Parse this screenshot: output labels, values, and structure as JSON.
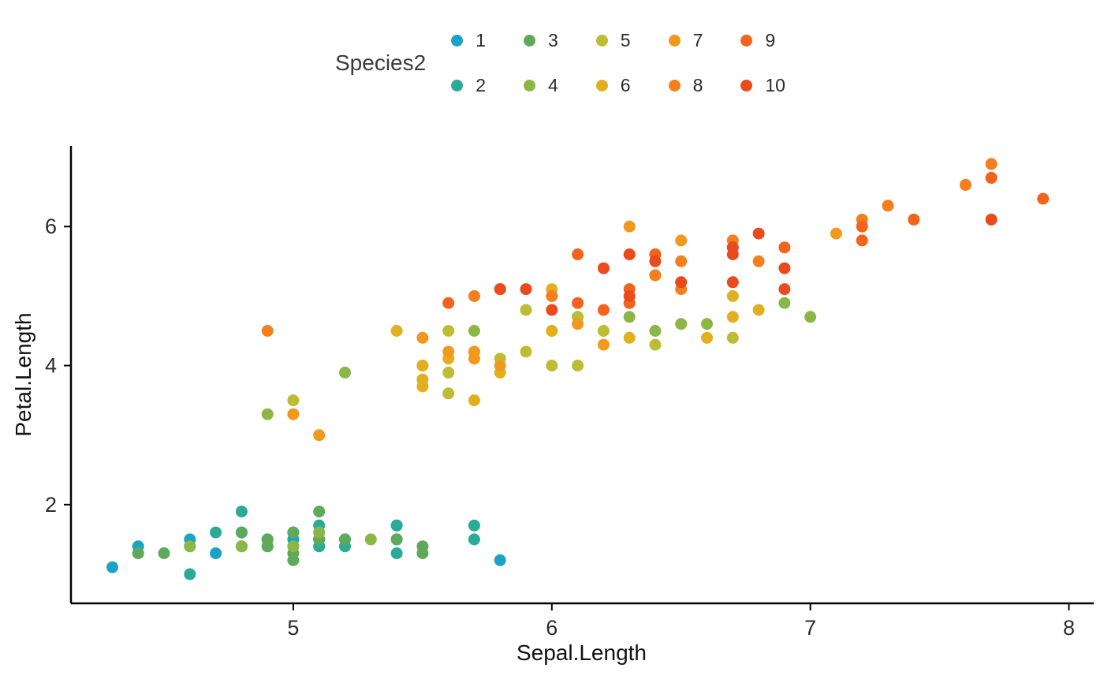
{
  "legend": {
    "title": "Species2"
  },
  "axes": {
    "x_label": "Sepal.Length",
    "y_label": "Petal.Length",
    "axis_color": "#000000",
    "tick_text_color": "#2b2b2b"
  },
  "chart_data": {
    "type": "scatter",
    "title": "",
    "xlabel": "Sepal.Length",
    "ylabel": "Petal.Length",
    "legend_title": "Species2",
    "legend_position": "top",
    "grid": false,
    "xlim": [
      4.14,
      8.09
    ],
    "ylim": [
      0.58,
      7.16
    ],
    "x_ticks": [
      5,
      6,
      7,
      8
    ],
    "y_ticks": [
      2,
      4,
      6
    ],
    "point_radius": 7.5,
    "series": [
      {
        "name": "1",
        "color": "#1BA3C6",
        "points": [
          [
            5.1,
            1.4
          ],
          [
            4.9,
            1.4
          ],
          [
            4.7,
            1.3
          ],
          [
            4.6,
            1.5
          ],
          [
            5.0,
            1.4
          ],
          [
            5.4,
            1.7
          ],
          [
            4.6,
            1.4
          ],
          [
            5.0,
            1.5
          ],
          [
            4.4,
            1.4
          ],
          [
            4.9,
            1.5
          ],
          [
            5.4,
            1.5
          ],
          [
            4.8,
            1.6
          ],
          [
            4.8,
            1.4
          ],
          [
            4.3,
            1.1
          ],
          [
            5.8,
            1.2
          ]
        ]
      },
      {
        "name": "2",
        "color": "#2AAB95",
        "points": [
          [
            5.7,
            1.5
          ],
          [
            5.4,
            1.3
          ],
          [
            5.1,
            1.4
          ],
          [
            5.7,
            1.7
          ],
          [
            5.1,
            1.5
          ],
          [
            5.4,
            1.7
          ],
          [
            5.1,
            1.5
          ],
          [
            4.6,
            1.0
          ],
          [
            5.1,
            1.7
          ],
          [
            4.8,
            1.9
          ],
          [
            5.0,
            1.6
          ],
          [
            5.0,
            1.6
          ],
          [
            5.2,
            1.5
          ],
          [
            5.2,
            1.4
          ],
          [
            4.7,
            1.6
          ]
        ]
      },
      {
        "name": "3",
        "color": "#5FA95C",
        "points": [
          [
            4.8,
            1.6
          ],
          [
            5.4,
            1.5
          ],
          [
            5.2,
            1.5
          ],
          [
            5.5,
            1.4
          ],
          [
            4.9,
            1.5
          ],
          [
            5.0,
            1.2
          ],
          [
            5.5,
            1.3
          ],
          [
            4.9,
            1.4
          ],
          [
            4.4,
            1.3
          ],
          [
            5.1,
            1.5
          ],
          [
            5.0,
            1.3
          ],
          [
            4.5,
            1.3
          ],
          [
            4.4,
            1.3
          ],
          [
            5.0,
            1.6
          ],
          [
            5.1,
            1.9
          ]
        ]
      },
      {
        "name": "4",
        "color": "#8CB645",
        "points": [
          [
            4.8,
            1.4
          ],
          [
            5.1,
            1.6
          ],
          [
            4.6,
            1.4
          ],
          [
            5.3,
            1.5
          ],
          [
            5.0,
            1.4
          ],
          [
            7.0,
            4.7
          ],
          [
            6.4,
            4.5
          ],
          [
            6.9,
            4.9
          ],
          [
            5.5,
            4.0
          ],
          [
            6.5,
            4.6
          ],
          [
            5.7,
            4.5
          ],
          [
            6.3,
            4.7
          ],
          [
            4.9,
            3.3
          ],
          [
            6.6,
            4.6
          ],
          [
            5.2,
            3.9
          ]
        ]
      },
      {
        "name": "5",
        "color": "#BCBC35",
        "points": [
          [
            5.0,
            3.5
          ],
          [
            5.9,
            4.2
          ],
          [
            6.0,
            4.0
          ],
          [
            6.1,
            4.7
          ],
          [
            5.6,
            3.6
          ],
          [
            6.7,
            4.4
          ],
          [
            5.6,
            4.5
          ],
          [
            5.8,
            4.1
          ],
          [
            6.2,
            4.5
          ],
          [
            5.6,
            3.9
          ],
          [
            5.9,
            4.8
          ],
          [
            6.1,
            4.0
          ],
          [
            6.3,
            4.9
          ],
          [
            6.1,
            4.7
          ],
          [
            6.4,
            4.3
          ]
        ]
      },
      {
        "name": "6",
        "color": "#E2B01E",
        "points": [
          [
            6.6,
            4.4
          ],
          [
            6.8,
            4.8
          ],
          [
            6.7,
            5.0
          ],
          [
            6.0,
            4.5
          ],
          [
            5.7,
            3.5
          ],
          [
            5.5,
            3.8
          ],
          [
            5.5,
            3.7
          ],
          [
            5.8,
            3.9
          ],
          [
            6.0,
            5.1
          ],
          [
            5.4,
            4.5
          ],
          [
            6.0,
            4.5
          ],
          [
            6.7,
            4.7
          ],
          [
            6.3,
            4.4
          ],
          [
            5.6,
            4.1
          ],
          [
            5.5,
            4.0
          ]
        ]
      },
      {
        "name": "7",
        "color": "#F1991F",
        "points": [
          [
            5.5,
            4.4
          ],
          [
            6.1,
            4.6
          ],
          [
            5.8,
            4.0
          ],
          [
            5.0,
            3.3
          ],
          [
            5.6,
            4.2
          ],
          [
            5.7,
            4.2
          ],
          [
            5.7,
            4.2
          ],
          [
            6.2,
            4.3
          ],
          [
            5.1,
            3.0
          ],
          [
            5.7,
            4.1
          ],
          [
            6.3,
            6.0
          ],
          [
            5.8,
            5.1
          ],
          [
            7.1,
            5.9
          ],
          [
            6.3,
            5.6
          ],
          [
            6.5,
            5.8
          ]
        ]
      },
      {
        "name": "8",
        "color": "#F57F1E",
        "points": [
          [
            7.6,
            6.6
          ],
          [
            4.9,
            4.5
          ],
          [
            7.3,
            6.3
          ],
          [
            6.7,
            5.8
          ],
          [
            7.2,
            6.1
          ],
          [
            6.5,
            5.1
          ],
          [
            6.4,
            5.3
          ],
          [
            6.8,
            5.5
          ],
          [
            5.7,
            5.0
          ],
          [
            5.8,
            5.1
          ],
          [
            6.4,
            5.3
          ],
          [
            6.5,
            5.5
          ],
          [
            7.7,
            6.7
          ],
          [
            7.7,
            6.9
          ],
          [
            6.0,
            5.0
          ]
        ]
      },
      {
        "name": "9",
        "color": "#F2631C",
        "points": [
          [
            6.9,
            5.7
          ],
          [
            5.6,
            4.9
          ],
          [
            7.7,
            6.7
          ],
          [
            6.3,
            4.9
          ],
          [
            6.7,
            5.7
          ],
          [
            7.2,
            6.0
          ],
          [
            6.2,
            4.8
          ],
          [
            6.1,
            4.9
          ],
          [
            6.4,
            5.6
          ],
          [
            7.2,
            5.8
          ],
          [
            7.4,
            6.1
          ],
          [
            7.9,
            6.4
          ],
          [
            6.4,
            5.6
          ],
          [
            6.3,
            5.1
          ],
          [
            6.1,
            5.6
          ]
        ]
      },
      {
        "name": "10",
        "color": "#EB4A1C",
        "points": [
          [
            7.7,
            6.1
          ],
          [
            6.3,
            5.6
          ],
          [
            6.4,
            5.5
          ],
          [
            6.0,
            4.8
          ],
          [
            6.9,
            5.4
          ],
          [
            6.7,
            5.6
          ],
          [
            6.9,
            5.1
          ],
          [
            5.8,
            5.1
          ],
          [
            6.8,
            5.9
          ],
          [
            6.7,
            5.7
          ],
          [
            6.7,
            5.2
          ],
          [
            6.3,
            5.0
          ],
          [
            6.5,
            5.2
          ],
          [
            6.2,
            5.4
          ],
          [
            5.9,
            5.1
          ]
        ]
      }
    ]
  }
}
